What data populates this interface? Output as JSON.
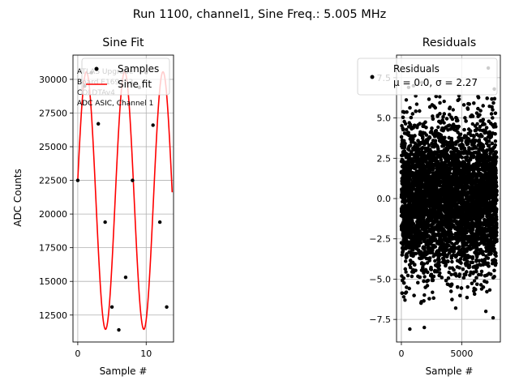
{
  "suptitle": "Run 1100, channel1, Sine Freq.: 5.005 MHz",
  "chart_data": [
    {
      "type": "scatter",
      "title": "Sine Fit",
      "xlabel": "Sample #",
      "ylabel": "ADC Counts",
      "xlim": [
        -0.7,
        14.0
      ],
      "ylim": [
        10500,
        31800
      ],
      "xticks": [
        {
          "v": 0,
          "label": "0"
        },
        {
          "v": 10,
          "label": "10"
        }
      ],
      "yticks": [
        {
          "v": 12500,
          "label": "12500"
        },
        {
          "v": 15000,
          "label": "15000"
        },
        {
          "v": 17500,
          "label": "17500"
        },
        {
          "v": 20000,
          "label": "20000"
        },
        {
          "v": 22500,
          "label": "22500"
        },
        {
          "v": 25000,
          "label": "25000"
        },
        {
          "v": 27500,
          "label": "27500"
        },
        {
          "v": 30000,
          "label": "30000"
        }
      ],
      "grid": true,
      "legend_position": "top-right",
      "annotation": [
        "ATLAS Upgrade",
        " Board E169153",
        "COLDTAv4",
        "ADC ASIC, Channel 1"
      ],
      "series": [
        {
          "name": "Samples",
          "kind": "scatter",
          "color": "#000000",
          "x": [
            0,
            1,
            2,
            3,
            4,
            5,
            6,
            7,
            8,
            9,
            10,
            11,
            12,
            13
          ],
          "y": [
            22500,
            29500,
            30500,
            26700,
            19400,
            13100,
            11400,
            15300,
            22500,
            29400,
            30500,
            26600,
            19400,
            13100
          ]
        },
        {
          "name": "Sine fit",
          "kind": "line",
          "color": "#ff0000",
          "function": "sine",
          "x_range": [
            0,
            13.8
          ],
          "amplitude": 9560,
          "offset": 21000,
          "period": 5.6,
          "phase": 0.16
        }
      ]
    },
    {
      "type": "scatter",
      "title": "Residuals",
      "xlabel": "Sample #",
      "ylabel": "",
      "xlim": [
        -400,
        8200
      ],
      "ylim": [
        -8.9,
        8.9
      ],
      "xticks": [
        {
          "v": 0,
          "label": "0"
        },
        {
          "v": 5000,
          "label": "5000"
        }
      ],
      "yticks": [
        {
          "v": -7.5,
          "label": "−7.5"
        },
        {
          "v": -5.0,
          "label": "−5.0"
        },
        {
          "v": -2.5,
          "label": "−2.5"
        },
        {
          "v": 0.0,
          "label": "0.0"
        },
        {
          "v": 2.5,
          "label": "2.5"
        },
        {
          "v": 5.0,
          "label": "5.0"
        },
        {
          "v": 7.5,
          "label": "7.5"
        }
      ],
      "grid": true,
      "legend_position": "top-right",
      "series": [
        {
          "name": "Residuals",
          "legend_stats": "μ = 0.0, σ = 2.27",
          "kind": "scatter",
          "color": "#000000",
          "n_points": 8000,
          "x_range": [
            0,
            7900
          ],
          "mean": 0.0,
          "std": 2.27,
          "outliers": [
            {
              "x": 200,
              "y": -6.1
            },
            {
              "x": 700,
              "y": -8.1
            },
            {
              "x": 1900,
              "y": -8.0
            },
            {
              "x": 1000,
              "y": 7.0
            },
            {
              "x": 1700,
              "y": 7.2
            },
            {
              "x": 7200,
              "y": 8.1
            },
            {
              "x": 600,
              "y": 6.9
            },
            {
              "x": 4500,
              "y": -6.8
            },
            {
              "x": 7600,
              "y": -7.4
            },
            {
              "x": 7000,
              "y": -7.0
            },
            {
              "x": 300,
              "y": -6.3
            },
            {
              "x": 7700,
              "y": 6.8
            }
          ]
        }
      ]
    }
  ]
}
